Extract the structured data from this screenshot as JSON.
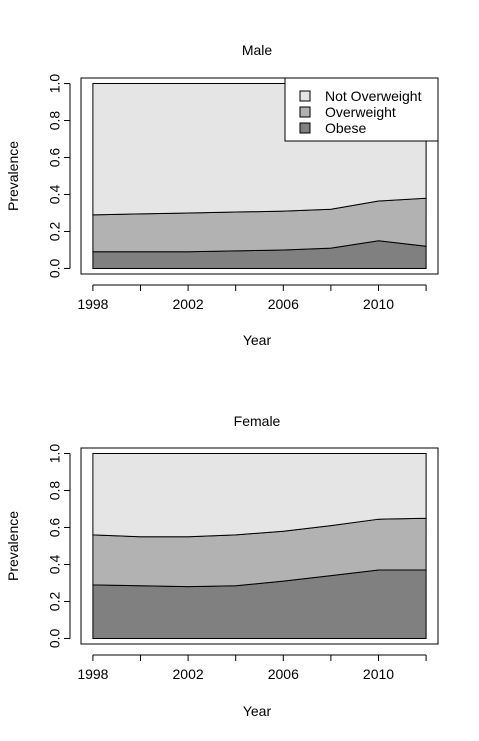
{
  "chart_data": [
    {
      "type": "area",
      "title": "Male",
      "xlabel": "Year",
      "ylabel": "Prevalence",
      "x": [
        1998,
        2000,
        2002,
        2004,
        2006,
        2008,
        2010,
        2012
      ],
      "x_ticks": [
        "1998",
        "2002",
        "2006",
        "2010"
      ],
      "y_ticks": [
        "0.0",
        "0.2",
        "0.4",
        "0.6",
        "0.8",
        "1.0"
      ],
      "xlim": [
        1997.5,
        2012.5
      ],
      "ylim": [
        -0.03,
        1.03
      ],
      "stacked": true,
      "series": [
        {
          "name": "Obese",
          "color": "#808080",
          "values": [
            0.09,
            0.09,
            0.09,
            0.095,
            0.1,
            0.11,
            0.15,
            0.12
          ]
        },
        {
          "name": "Overweight",
          "color": "#b2b2b2",
          "values": [
            0.2,
            0.205,
            0.21,
            0.21,
            0.21,
            0.21,
            0.215,
            0.26
          ]
        },
        {
          "name": "Not Overweight",
          "color": "#e5e5e5",
          "values": [
            0.71,
            0.705,
            0.7,
            0.695,
            0.69,
            0.68,
            0.635,
            0.62
          ]
        }
      ],
      "legend": {
        "position": "top-right",
        "entries": [
          "Not Overweight",
          "Overweight",
          "Obese"
        ]
      }
    },
    {
      "type": "area",
      "title": "Female",
      "xlabel": "Year",
      "ylabel": "Prevalence",
      "x": [
        1998,
        2000,
        2002,
        2004,
        2006,
        2008,
        2010,
        2012
      ],
      "x_ticks": [
        "1998",
        "2002",
        "2006",
        "2010"
      ],
      "y_ticks": [
        "0.0",
        "0.2",
        "0.4",
        "0.6",
        "0.8",
        "1.0"
      ],
      "xlim": [
        1997.5,
        2012.5
      ],
      "ylim": [
        -0.03,
        1.03
      ],
      "stacked": true,
      "series": [
        {
          "name": "Obese",
          "color": "#808080",
          "values": [
            0.29,
            0.285,
            0.28,
            0.285,
            0.31,
            0.34,
            0.37,
            0.37
          ]
        },
        {
          "name": "Overweight",
          "color": "#b2b2b2",
          "values": [
            0.27,
            0.265,
            0.27,
            0.275,
            0.27,
            0.27,
            0.275,
            0.28
          ]
        },
        {
          "name": "Not Overweight",
          "color": "#e5e5e5",
          "values": [
            0.44,
            0.45,
            0.45,
            0.44,
            0.42,
            0.39,
            0.355,
            0.35
          ]
        }
      ]
    }
  ]
}
